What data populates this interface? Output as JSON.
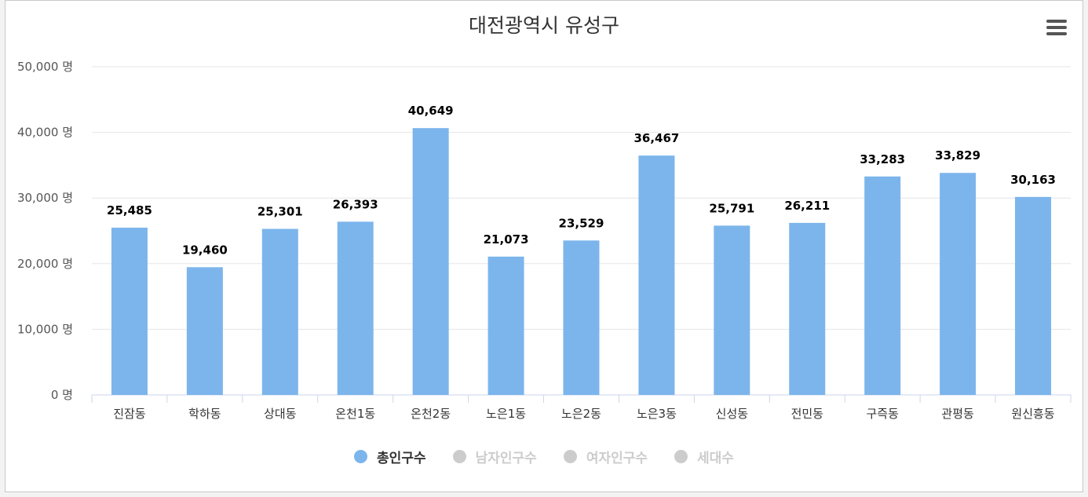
{
  "title": "대전광역시 유성구",
  "menu_icon": "hamburger-menu-icon",
  "chart_data": {
    "type": "bar",
    "title": "대전광역시 유성구",
    "categories": [
      "진잠동",
      "학하동",
      "상대동",
      "온천1동",
      "온천2동",
      "노은1동",
      "노은2동",
      "노은3동",
      "신성동",
      "전민동",
      "구즉동",
      "관평동",
      "원신흥동"
    ],
    "series": [
      {
        "name": "총인구수",
        "values": [
          25485,
          19460,
          25301,
          26393,
          40649,
          21073,
          23529,
          36467,
          25791,
          26211,
          33283,
          33829,
          30163
        ],
        "color": "#7cb5ec",
        "visible": true
      }
    ],
    "data_labels": [
      "25,485",
      "19,460",
      "25,301",
      "26,393",
      "40,649",
      "21,073",
      "23,529",
      "36,467",
      "25,791",
      "26,211",
      "33,283",
      "33,829",
      "30,163"
    ],
    "ylim": [
      0,
      50000
    ],
    "yticks": [
      0,
      10000,
      20000,
      30000,
      40000,
      50000
    ],
    "ytick_labels": [
      "0 명",
      "10,000 명",
      "20,000 명",
      "30,000 명",
      "40,000 명",
      "50,000 명"
    ],
    "grid": true,
    "legend_position": "bottom-center"
  },
  "legend": [
    {
      "label": "총인구수",
      "color": "#7cb5ec",
      "text_color": "#333333"
    },
    {
      "label": "남자인구수",
      "color": "#cccccc",
      "text_color": "#cccccc"
    },
    {
      "label": "여자인구수",
      "color": "#cccccc",
      "text_color": "#cccccc"
    },
    {
      "label": "세대수",
      "color": "#cccccc",
      "text_color": "#cccccc"
    }
  ]
}
